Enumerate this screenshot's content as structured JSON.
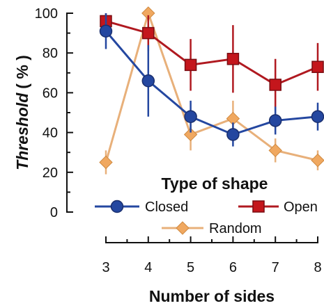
{
  "chart_data": {
    "type": "line",
    "xlabel": "Number of sides",
    "ylabel_main": "Threshold",
    "ylabel_unit": "( % )",
    "x": [
      3,
      4,
      5,
      6,
      7,
      8
    ],
    "xlim": [
      3,
      8
    ],
    "ylim": [
      0,
      100
    ],
    "y_ticks": [
      0,
      20,
      40,
      60,
      80,
      100
    ],
    "grid": false,
    "legend": {
      "title": "Type of shape",
      "placement": "lower-center"
    },
    "series": [
      {
        "name": "Closed",
        "color": "#2447a0",
        "line_color": "#2447a0",
        "marker": "circle",
        "values": [
          91,
          66,
          48,
          39,
          46,
          48
        ],
        "error": [
          9,
          18,
          8,
          6,
          7,
          7
        ]
      },
      {
        "name": "Open",
        "color": "#c4161c",
        "line_color": "#b01920",
        "marker": "square",
        "values": [
          96,
          90,
          74,
          77,
          64,
          73
        ],
        "error": [
          4,
          9,
          13,
          17,
          13,
          12
        ]
      },
      {
        "name": "Random",
        "color": "#f0a860",
        "line_color": "#e8b07a",
        "marker": "diamond",
        "values": [
          25,
          100,
          39,
          47,
          31,
          26
        ],
        "error": [
          6,
          0,
          8,
          9,
          6,
          5
        ]
      }
    ]
  }
}
